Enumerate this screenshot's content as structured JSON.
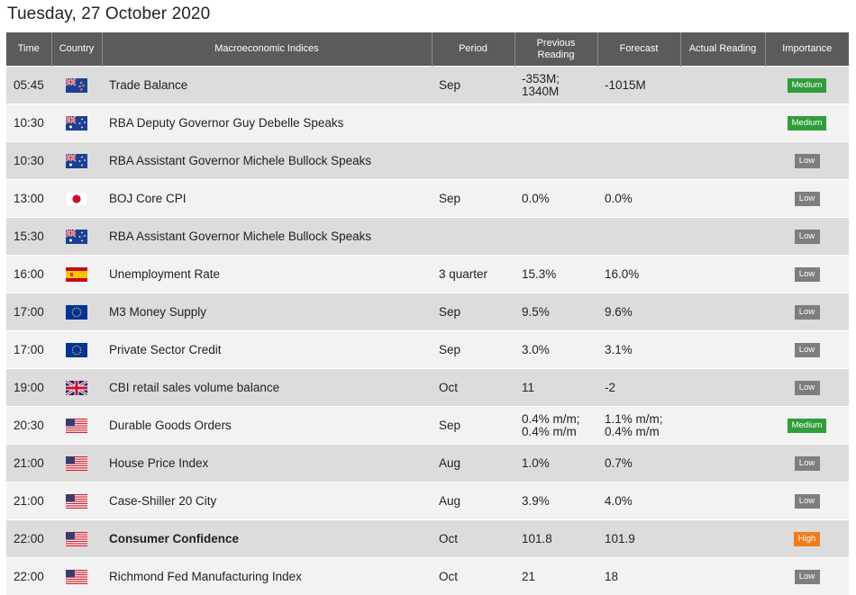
{
  "page_title": "Tuesday, 27 October 2020",
  "columns": {
    "time": "Time",
    "country": "Country",
    "indices": "Macroeconomic Indices",
    "period": "Period",
    "previous_line1": "Previous",
    "previous_line2": "Reading",
    "forecast": "Forecast",
    "actual": "Actual Reading",
    "importance": "Importance"
  },
  "colors": {
    "header_bg": "#5b5b5b",
    "row_odd": "#dcdcdc",
    "row_even": "#f2f2f2",
    "medium": "#2e9d3a",
    "low": "#7e7e7e",
    "high": "#f07c1c"
  },
  "rows": [
    {
      "time": "05:45",
      "flag": "nz-flag-icon",
      "index": "Trade Balance",
      "period": "Sep",
      "previous": [
        "-353M;",
        "1340M"
      ],
      "forecast": [
        "-1015M"
      ],
      "actual": "",
      "importance": "Medium",
      "level": "medium"
    },
    {
      "time": "10:30",
      "flag": "au-flag-icon",
      "index": "RBA Deputy Governor Guy Debelle Speaks",
      "period": "",
      "previous": [],
      "forecast": [],
      "actual": "",
      "importance": "Medium",
      "level": "medium"
    },
    {
      "time": "10:30",
      "flag": "au-flag-icon",
      "index": "RBA Assistant Governor Michele Bullock Speaks",
      "period": "",
      "previous": [],
      "forecast": [],
      "actual": "",
      "importance": "Low",
      "level": "low"
    },
    {
      "time": "13:00",
      "flag": "jp-flag-icon",
      "index": "BOJ Core CPI",
      "period": "Sep",
      "previous": [
        "0.0%"
      ],
      "forecast": [
        "0.0%"
      ],
      "actual": "",
      "importance": "Low",
      "level": "low"
    },
    {
      "time": "15:30",
      "flag": "au-flag-icon",
      "index": "RBA Assistant Governor Michele Bullock Speaks",
      "period": "",
      "previous": [],
      "forecast": [],
      "actual": "",
      "importance": "Low",
      "level": "low"
    },
    {
      "time": "16:00",
      "flag": "es-flag-icon",
      "index": "Unemployment Rate",
      "period": "3 quarter",
      "previous": [
        "15.3%"
      ],
      "forecast": [
        "16.0%"
      ],
      "actual": "",
      "importance": "Low",
      "level": "low"
    },
    {
      "time": "17:00",
      "flag": "eu-flag-icon",
      "index": "M3 Money Supply",
      "period": "Sep",
      "previous": [
        "9.5%"
      ],
      "forecast": [
        "9.6%"
      ],
      "actual": "",
      "importance": "Low",
      "level": "low"
    },
    {
      "time": "17:00",
      "flag": "eu-flag-icon",
      "index": "Private Sector Credit",
      "period": "Sep",
      "previous": [
        "3.0%"
      ],
      "forecast": [
        "3.1%"
      ],
      "actual": "",
      "importance": "Low",
      "level": "low"
    },
    {
      "time": "19:00",
      "flag": "uk-flag-icon",
      "index": "CBI retail sales volume balance",
      "period": "Oct",
      "previous": [
        "11"
      ],
      "forecast": [
        "-2"
      ],
      "actual": "",
      "importance": "Low",
      "level": "low"
    },
    {
      "time": "20:30",
      "flag": "us-flag-icon",
      "index": "Durable Goods Orders",
      "period": "Sep",
      "previous": [
        "0.4% m/m;",
        "0.4% m/m"
      ],
      "forecast": [
        "1.1% m/m;",
        "0.4% m/m"
      ],
      "actual": "",
      "importance": "Medium",
      "level": "medium"
    },
    {
      "time": "21:00",
      "flag": "us-flag-icon",
      "index": "House Price Index",
      "period": "Aug",
      "previous": [
        "1.0%"
      ],
      "forecast": [
        "0.7%"
      ],
      "actual": "",
      "importance": "Low",
      "level": "low"
    },
    {
      "time": "21:00",
      "flag": "us-flag-icon",
      "index": "Case-Shiller 20 City",
      "period": "Aug",
      "previous": [
        "3.9%"
      ],
      "forecast": [
        "4.0%"
      ],
      "actual": "",
      "importance": "Low",
      "level": "low"
    },
    {
      "time": "22:00",
      "flag": "us-flag-icon",
      "index": "Consumer Confidence",
      "period": "Oct",
      "previous": [
        "101.8"
      ],
      "forecast": [
        "101.9"
      ],
      "actual": "",
      "importance": "High",
      "level": "high",
      "bold": true
    },
    {
      "time": "22:00",
      "flag": "us-flag-icon",
      "index": "Richmond Fed Manufacturing Index",
      "period": "Oct",
      "previous": [
        "21"
      ],
      "forecast": [
        "18"
      ],
      "actual": "",
      "importance": "Low",
      "level": "low"
    }
  ]
}
